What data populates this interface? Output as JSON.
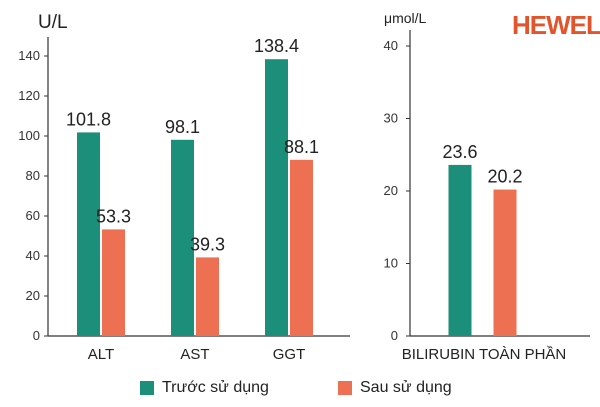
{
  "logo": {
    "text": "HEWEL",
    "color": "#e2542b"
  },
  "colors": {
    "before": "#1b8f7a",
    "after": "#ec7051",
    "axis": "#333333"
  },
  "legend": [
    {
      "label": "Trước sử dụng",
      "color": "#1b8f7a"
    },
    {
      "label": "Sau sử dụng",
      "color": "#ec7051"
    }
  ],
  "chart_data": [
    {
      "type": "bar",
      "ylabel": "U/L",
      "ylim": [
        0,
        150
      ],
      "yticks": [
        0,
        20,
        40,
        60,
        80,
        100,
        120,
        140
      ],
      "categories": [
        "ALT",
        "AST",
        "GGT"
      ],
      "series": [
        {
          "name": "Trước sử dụng",
          "values": [
            101.8,
            98.1,
            138.4
          ],
          "labels": [
            "101.8",
            "98.1",
            "138.4"
          ]
        },
        {
          "name": "Sau sử dụng",
          "values": [
            53.3,
            39.3,
            88.1
          ],
          "labels": [
            "53.3",
            "39.3",
            "88.1"
          ]
        }
      ],
      "grid": false
    },
    {
      "type": "bar",
      "ylabel": "μmol/L",
      "ylim": [
        0,
        42
      ],
      "yticks": [
        0,
        10,
        20,
        30,
        40
      ],
      "categories": [
        "BILIRUBIN TOÀN PHẦN"
      ],
      "series": [
        {
          "name": "Trước sử dụng",
          "values": [
            23.6
          ],
          "labels": [
            "23.6"
          ]
        },
        {
          "name": "Sau sử dụng",
          "values": [
            20.2
          ],
          "labels": [
            "20.2"
          ]
        }
      ],
      "grid": false
    }
  ]
}
